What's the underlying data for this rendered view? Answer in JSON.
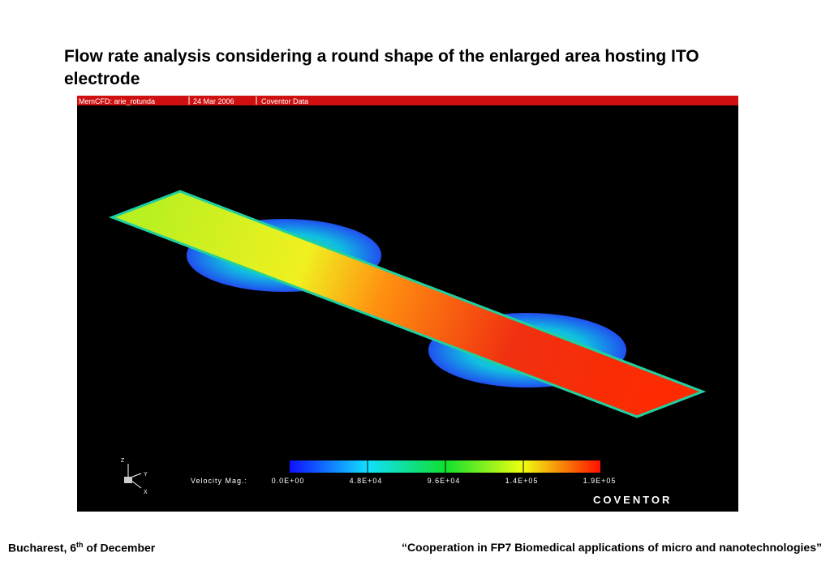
{
  "title": "Flow rate analysis considering a round shape of the enlarged area hosting ITO electrode",
  "image": {
    "header": [
      "MemCFD: arie_rotunda",
      "24 Mar 2006",
      "Coventor Data"
    ],
    "legend_label": "Velocity Mag.:",
    "colorbar_ticks": [
      "0.0E+00",
      "4.8E+04",
      "9.6E+04",
      "1.4E+05",
      "1.9E+05"
    ],
    "axes": [
      "Z",
      "Y",
      "X"
    ],
    "brand": "COVENTOR"
  },
  "footer": {
    "left": [
      "Bucharest, 6",
      "th",
      " of December"
    ],
    "right": "“Cooperation in FP7 Biomedical applications of micro and nanotechnologies”"
  }
}
